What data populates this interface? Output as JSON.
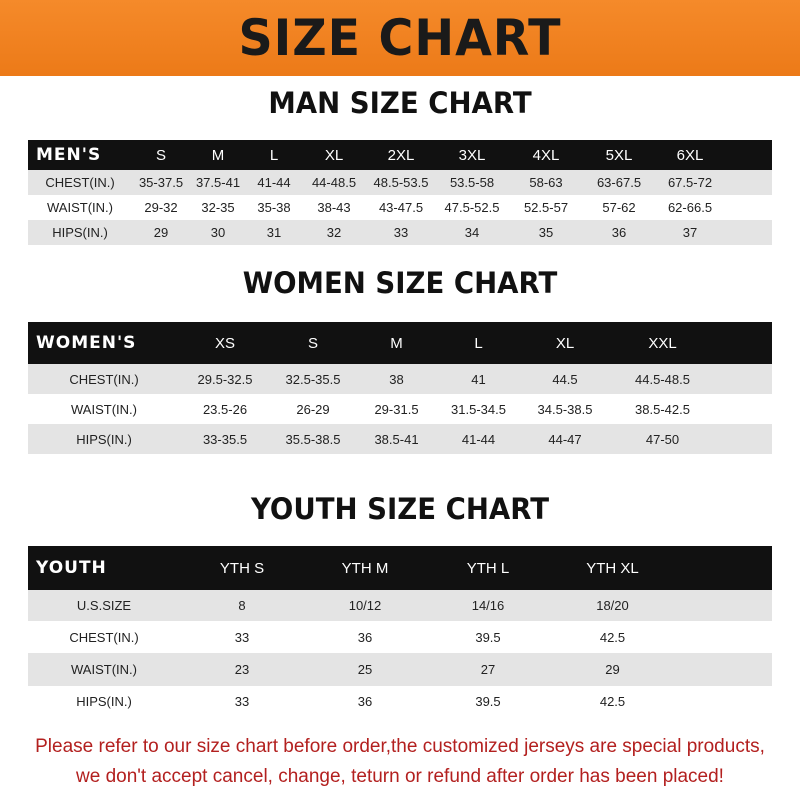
{
  "banner": "SIZE CHART",
  "men": {
    "title": "MAN SIZE CHART",
    "header": [
      "MEN'S",
      "S",
      "M",
      "L",
      "XL",
      "2XL",
      "3XL",
      "4XL",
      "5XL",
      "6XL"
    ],
    "rows": [
      [
        "CHEST(IN.)",
        "35-37.5",
        "37.5-41",
        "41-44",
        "44-48.5",
        "48.5-53.5",
        "53.5-58",
        "58-63",
        "63-67.5",
        "67.5-72"
      ],
      [
        "WAIST(IN.)",
        "29-32",
        "32-35",
        "35-38",
        "38-43",
        "43-47.5",
        "47.5-52.5",
        "52.5-57",
        "57-62",
        "62-66.5"
      ],
      [
        "HIPS(IN.)",
        "29",
        "30",
        "31",
        "32",
        "33",
        "34",
        "35",
        "36",
        "37"
      ]
    ]
  },
  "women": {
    "title": "WOMEN SIZE CHART",
    "header": [
      "WOMEN'S",
      "XS",
      "S",
      "M",
      "L",
      "XL",
      "XXL"
    ],
    "rows": [
      [
        "CHEST(IN.)",
        "29.5-32.5",
        "32.5-35.5",
        "38",
        "41",
        "44.5",
        "44.5-48.5"
      ],
      [
        "WAIST(IN.)",
        "23.5-26",
        "26-29",
        "29-31.5",
        "31.5-34.5",
        "34.5-38.5",
        "38.5-42.5"
      ],
      [
        "HIPS(IN.)",
        "33-35.5",
        "35.5-38.5",
        "38.5-41",
        "41-44",
        "44-47",
        "47-50"
      ]
    ]
  },
  "youth": {
    "title": "YOUTH SIZE CHART",
    "header": [
      "YOUTH",
      "YTH S",
      "YTH M",
      "YTH L",
      "YTH XL"
    ],
    "rows": [
      [
        "U.S.SIZE",
        "8",
        "10/12",
        "14/16",
        "18/20"
      ],
      [
        "CHEST(IN.)",
        "33",
        "36",
        "39.5",
        "42.5"
      ],
      [
        "WAIST(IN.)",
        "23",
        "25",
        "27",
        "29"
      ],
      [
        "HIPS(IN.)",
        "33",
        "36",
        "39.5",
        "42.5"
      ]
    ]
  },
  "note": [
    "Please refer to our size chart before order,the customized jerseys are special products,",
    "we don't accept cancel, change, teturn or refund after order has been placed!"
  ],
  "colors": {
    "banner": "#f07f1e",
    "header_row": "#111111",
    "note": "#b3201f"
  }
}
